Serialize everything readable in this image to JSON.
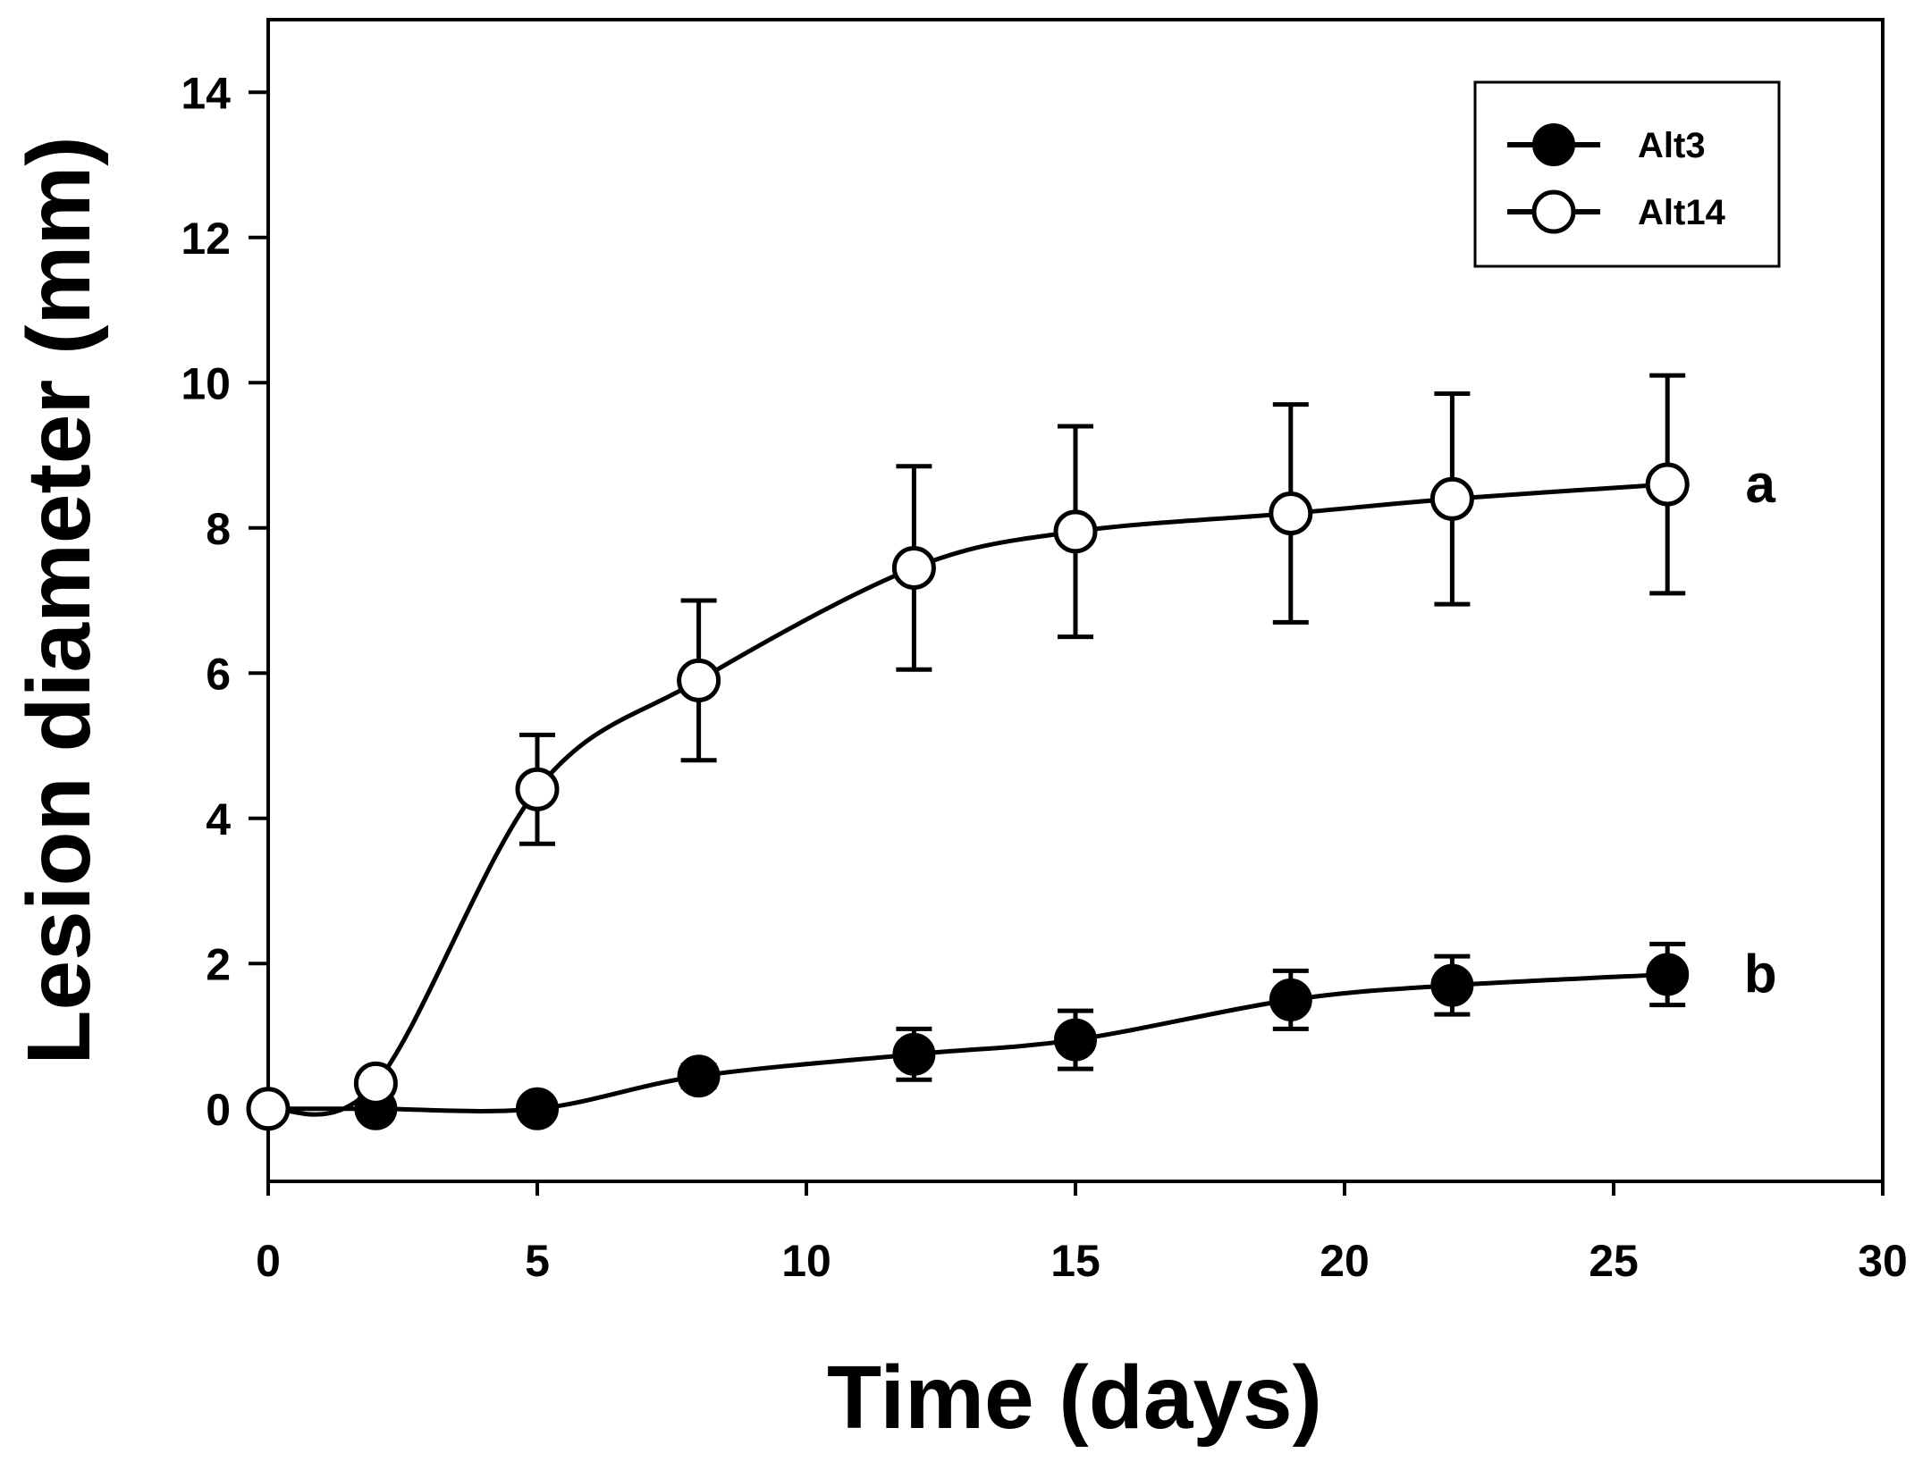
{
  "chart_data": {
    "type": "line",
    "title": "",
    "xlabel": "Time (days)",
    "ylabel": "Lesion diameter (mm)",
    "xlim": [
      0,
      30
    ],
    "ylim": [
      -1,
      15
    ],
    "xticks": [
      0,
      5,
      10,
      15,
      20,
      25,
      30
    ],
    "yticks": [
      0,
      2,
      4,
      6,
      8,
      10,
      12,
      14
    ],
    "grid": false,
    "legend_position": "top-right",
    "series": [
      {
        "name": "Alt3",
        "marker": "filled-circle",
        "x": [
          0,
          2,
          5,
          8,
          12,
          15,
          19,
          22,
          26
        ],
        "y": [
          0,
          0,
          0,
          0.45,
          0.75,
          0.95,
          1.5,
          1.7,
          1.85
        ],
        "error": [
          0,
          0,
          0,
          0.15,
          0.35,
          0.4,
          0.4,
          0.4,
          0.42
        ],
        "group_label": "b"
      },
      {
        "name": "Alt14",
        "marker": "open-circle",
        "x": [
          0,
          2,
          5,
          8,
          12,
          15,
          19,
          22,
          26
        ],
        "y": [
          0,
          0.35,
          4.4,
          5.9,
          7.45,
          7.95,
          8.2,
          8.4,
          8.6
        ],
        "error": [
          0,
          0,
          0.75,
          1.1,
          1.4,
          1.45,
          1.5,
          1.45,
          1.5
        ],
        "group_label": "a"
      }
    ]
  }
}
